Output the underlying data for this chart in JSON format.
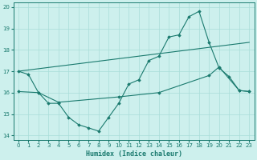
{
  "xlabel": "Humidex (Indice chaleur)",
  "ylabel": "",
  "xlim": [
    -0.5,
    23.5
  ],
  "ylim": [
    13.8,
    20.2
  ],
  "yticks": [
    14,
    15,
    16,
    17,
    18,
    19,
    20
  ],
  "xticks": [
    0,
    1,
    2,
    3,
    4,
    5,
    6,
    7,
    8,
    9,
    10,
    11,
    12,
    13,
    14,
    15,
    16,
    17,
    18,
    19,
    20,
    21,
    22,
    23
  ],
  "bg_color": "#cdf0ed",
  "grid_color": "#a8ddd8",
  "line_color": "#1a7a6e",
  "line1_x": [
    0,
    1,
    2,
    3,
    4,
    5,
    6,
    7,
    8,
    9,
    10,
    11,
    12,
    13,
    14,
    15,
    16,
    17,
    18,
    19,
    20,
    21,
    22,
    23
  ],
  "line1_y": [
    17.0,
    16.85,
    16.0,
    15.5,
    15.5,
    14.85,
    14.5,
    14.35,
    14.2,
    14.85,
    15.5,
    16.4,
    16.6,
    17.5,
    17.7,
    18.6,
    18.7,
    19.55,
    19.8,
    18.35,
    17.15,
    16.75,
    16.1,
    16.05
  ],
  "line2_x": [
    0,
    23
  ],
  "line2_y": [
    17.0,
    18.35
  ],
  "line3_x": [
    0,
    2,
    4,
    10,
    14,
    19,
    20,
    22,
    23
  ],
  "line3_y": [
    16.05,
    16.0,
    15.55,
    15.8,
    16.0,
    16.8,
    17.2,
    16.1,
    16.05
  ]
}
